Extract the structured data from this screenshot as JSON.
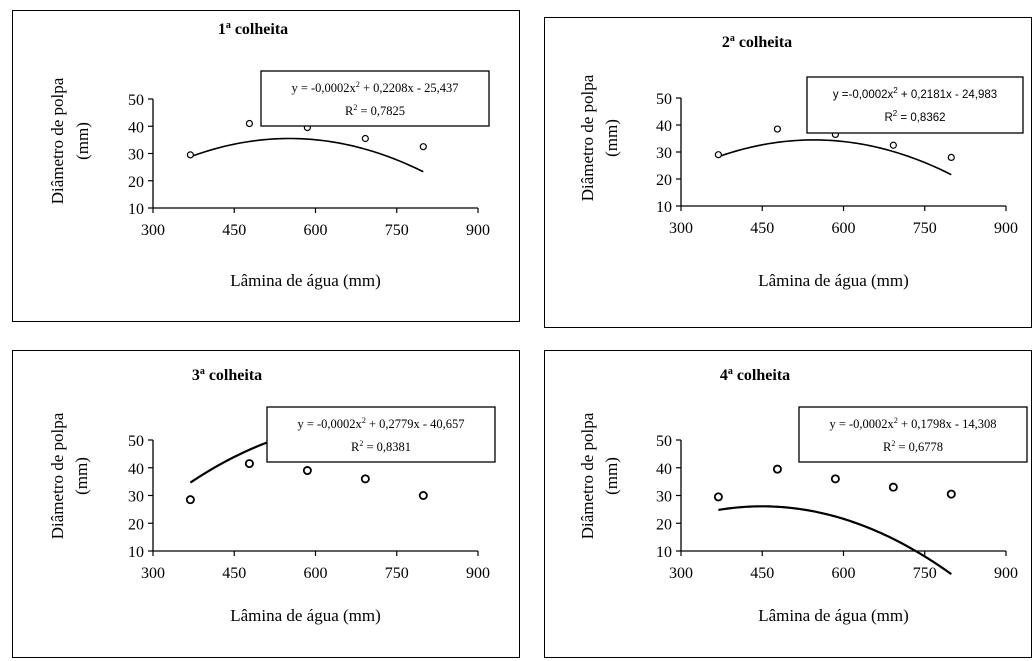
{
  "chart_data": [
    {
      "type": "scatter",
      "title_main": "1",
      "title_sup": "a",
      "title_rest": " colheita",
      "xlabel": "Lâmina de água (mm)",
      "ylabel_line1": "Diâmetro de polpa",
      "ylabel_line2": "(mm)",
      "xlim": [
        300,
        900
      ],
      "ylim": [
        10,
        50
      ],
      "xticks": [
        "300",
        "450",
        "600",
        "750",
        "900"
      ],
      "yticks": [
        "10",
        "20",
        "30",
        "40",
        "50"
      ],
      "x": [
        369,
        478,
        585,
        692,
        799
      ],
      "y": [
        29.5,
        41,
        39.5,
        35.5,
        32.5
      ],
      "fit": {
        "a": -0.0002,
        "b": 0.2208,
        "c": -25.437,
        "x_from": 369,
        "x_to": 799
      },
      "equation_pre": "y = -0,0002x",
      "equation_exp": "2",
      "equation_post": " + 0,2208x - 25,437",
      "r2_pre": "R",
      "r2_exp": "2",
      "r2_post": " = 0,7825"
    },
    {
      "type": "scatter",
      "title_main": "2",
      "title_sup": "a",
      "title_rest": " colheita",
      "xlabel": "Lâmina de água (mm)",
      "ylabel_line1": "Diâmetro de polpa",
      "ylabel_line2": "(mm)",
      "xlim": [
        300,
        900
      ],
      "ylim": [
        10,
        50
      ],
      "xticks": [
        "300",
        "450",
        "600",
        "750",
        "900"
      ],
      "yticks": [
        "10",
        "20",
        "30",
        "40",
        "50"
      ],
      "x": [
        369,
        478,
        585,
        692,
        799
      ],
      "y": [
        29,
        38.5,
        36.5,
        32.5,
        28
      ],
      "fit": {
        "a": -0.0002,
        "b": 0.2181,
        "c": -24.983,
        "x_from": 369,
        "x_to": 799
      },
      "equation_pre": "y =-0,0002x",
      "equation_exp": "2",
      "equation_post": " + 0,2181x - 24,983",
      "r2_pre": "R",
      "r2_exp": "2",
      "r2_post": " = 0,8362"
    },
    {
      "type": "scatter",
      "title_main": "3",
      "title_sup": "a",
      "title_rest": " colheita",
      "xlabel": "Lâmina de água (mm)",
      "ylabel_line1": "Diâmetro de polpa",
      "ylabel_line2": "(mm)",
      "xlim": [
        300,
        900
      ],
      "ylim": [
        10,
        50
      ],
      "xticks": [
        "300",
        "450",
        "600",
        "750",
        "900"
      ],
      "yticks": [
        "10",
        "20",
        "30",
        "40",
        "50"
      ],
      "x": [
        369,
        478,
        585,
        692,
        799
      ],
      "y": [
        28.5,
        41.5,
        39,
        36,
        30
      ],
      "fit": {
        "a": -0.0002,
        "b": 0.2779,
        "c": -40.657,
        "x_from": 369,
        "x_to": 799
      },
      "equation_pre": "y = -0,0002x",
      "equation_exp": "2",
      "equation_post": " + 0,2779x - 40,657",
      "r2_pre": "R",
      "r2_exp": "2",
      "r2_post": " = 0,8381"
    },
    {
      "type": "scatter",
      "title_main": "4",
      "title_sup": "a",
      "title_rest": " colheita",
      "xlabel": "Lâmina de água (mm)",
      "ylabel_line1": "Diâmetro de polpa",
      "ylabel_line2": "(mm)",
      "xlim": [
        300,
        900
      ],
      "ylim": [
        10,
        50
      ],
      "xticks": [
        "300",
        "450",
        "600",
        "750",
        "900"
      ],
      "yticks": [
        "10",
        "20",
        "30",
        "40",
        "50"
      ],
      "x": [
        369,
        478,
        585,
        692,
        799
      ],
      "y": [
        29.5,
        39.5,
        36,
        33,
        30.5
      ],
      "fit": {
        "a": -0.0002,
        "b": 0.1798,
        "c": -14.308,
        "x_from": 369,
        "x_to": 799
      },
      "equation_pre": "y = -0,0002x",
      "equation_exp": "2",
      "equation_post": " + 0,1798x - 14,308",
      "r2_pre": "R",
      "r2_exp": "2",
      "r2_post": " = 0,6778"
    }
  ]
}
